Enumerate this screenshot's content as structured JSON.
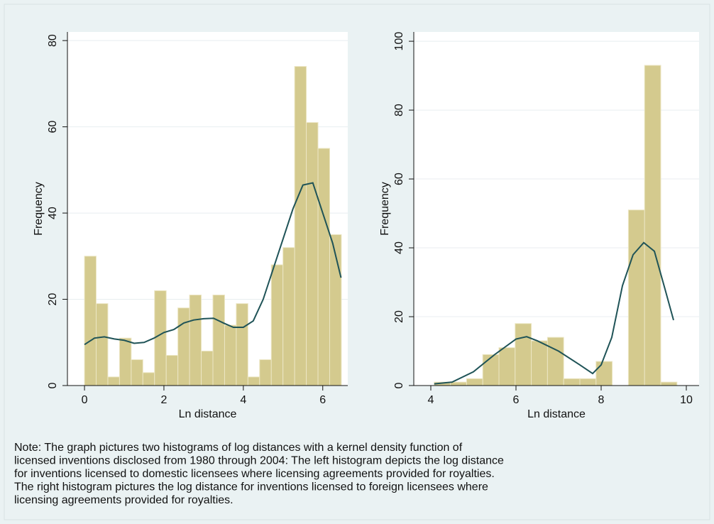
{
  "chart_data": [
    {
      "type": "histogram",
      "xlabel": "Ln distance",
      "ylabel": "Frequency",
      "bins": [
        0,
        0.294,
        0.588,
        0.882,
        1.176,
        1.47,
        1.764,
        2.058,
        2.352,
        2.646,
        2.94,
        3.234,
        3.528,
        3.822,
        4.116,
        4.41,
        4.704,
        4.998,
        5.292,
        5.586,
        5.88,
        6.174,
        6.468
      ],
      "values": [
        30,
        19,
        2,
        11,
        6,
        3,
        22,
        7,
        18,
        21,
        8,
        21,
        14,
        19,
        2,
        6,
        28,
        32,
        74,
        61,
        55,
        35
      ],
      "density": {
        "x": [
          0,
          0.25,
          0.5,
          0.75,
          1,
          1.25,
          1.5,
          1.75,
          2,
          2.25,
          2.5,
          2.75,
          3,
          3.25,
          3.5,
          3.75,
          4,
          4.25,
          4.5,
          4.75,
          5,
          5.25,
          5.5,
          5.75,
          6,
          6.25,
          6.46
        ],
        "y": [
          9.5,
          11,
          11.3,
          10.8,
          10.5,
          9.8,
          10,
          11,
          12.3,
          13,
          14.5,
          15.2,
          15.5,
          15.6,
          14.5,
          13.5,
          13.5,
          15,
          20,
          27,
          34,
          41,
          46.5,
          47,
          40,
          33,
          25
        ]
      },
      "xlim": [
        -0.43,
        6.63
      ],
      "ylim": [
        0,
        82
      ],
      "xticks": [
        0,
        2,
        4,
        6
      ],
      "yticks": [
        0,
        20,
        40,
        60,
        80
      ],
      "grid": true,
      "color": "#d4ca8e",
      "line_color": "#1f5357"
    },
    {
      "type": "histogram",
      "xlabel": "Ln distance",
      "ylabel": "Frequency",
      "bins": [
        4.08,
        4.46,
        4.84,
        5.22,
        5.6,
        5.98,
        6.36,
        6.74,
        7.12,
        7.5,
        7.88,
        8.26,
        8.64,
        9.02,
        9.4,
        9.78
      ],
      "values": [
        1,
        1,
        2,
        9,
        11,
        18,
        13,
        14,
        2,
        2,
        7,
        0,
        51,
        93,
        1
      ],
      "density": {
        "x": [
          4.08,
          4.5,
          5,
          5.5,
          6,
          6.25,
          6.5,
          7,
          7.5,
          7.8,
          8,
          8.25,
          8.5,
          8.75,
          9,
          9.25,
          9.5,
          9.7
        ],
        "y": [
          0.5,
          1,
          4,
          9,
          13.5,
          14.2,
          13,
          10,
          6,
          3.5,
          6,
          14,
          29,
          38,
          41.5,
          39,
          28,
          19
        ]
      },
      "xlim": [
        3.6,
        10.3
      ],
      "ylim": [
        0,
        102.7
      ],
      "xticks": [
        4,
        6,
        8,
        10
      ],
      "yticks": [
        0,
        20,
        40,
        60,
        80,
        100
      ],
      "grid": true,
      "color": "#d4ca8e",
      "line_color": "#1f5357"
    }
  ],
  "note": [
    "Note: The graph pictures two histograms of log distances with a kernel density function of",
    "licensed inventions disclosed from 1980 through 2004: The left histogram depicts the log distance",
    "for inventions licensed to domestic licensees where licensing agreements provided for royalties.",
    "The right histogram pictures the log distance for inventions licensed to foreign licensees where",
    "licensing agreements provided for royalties."
  ]
}
